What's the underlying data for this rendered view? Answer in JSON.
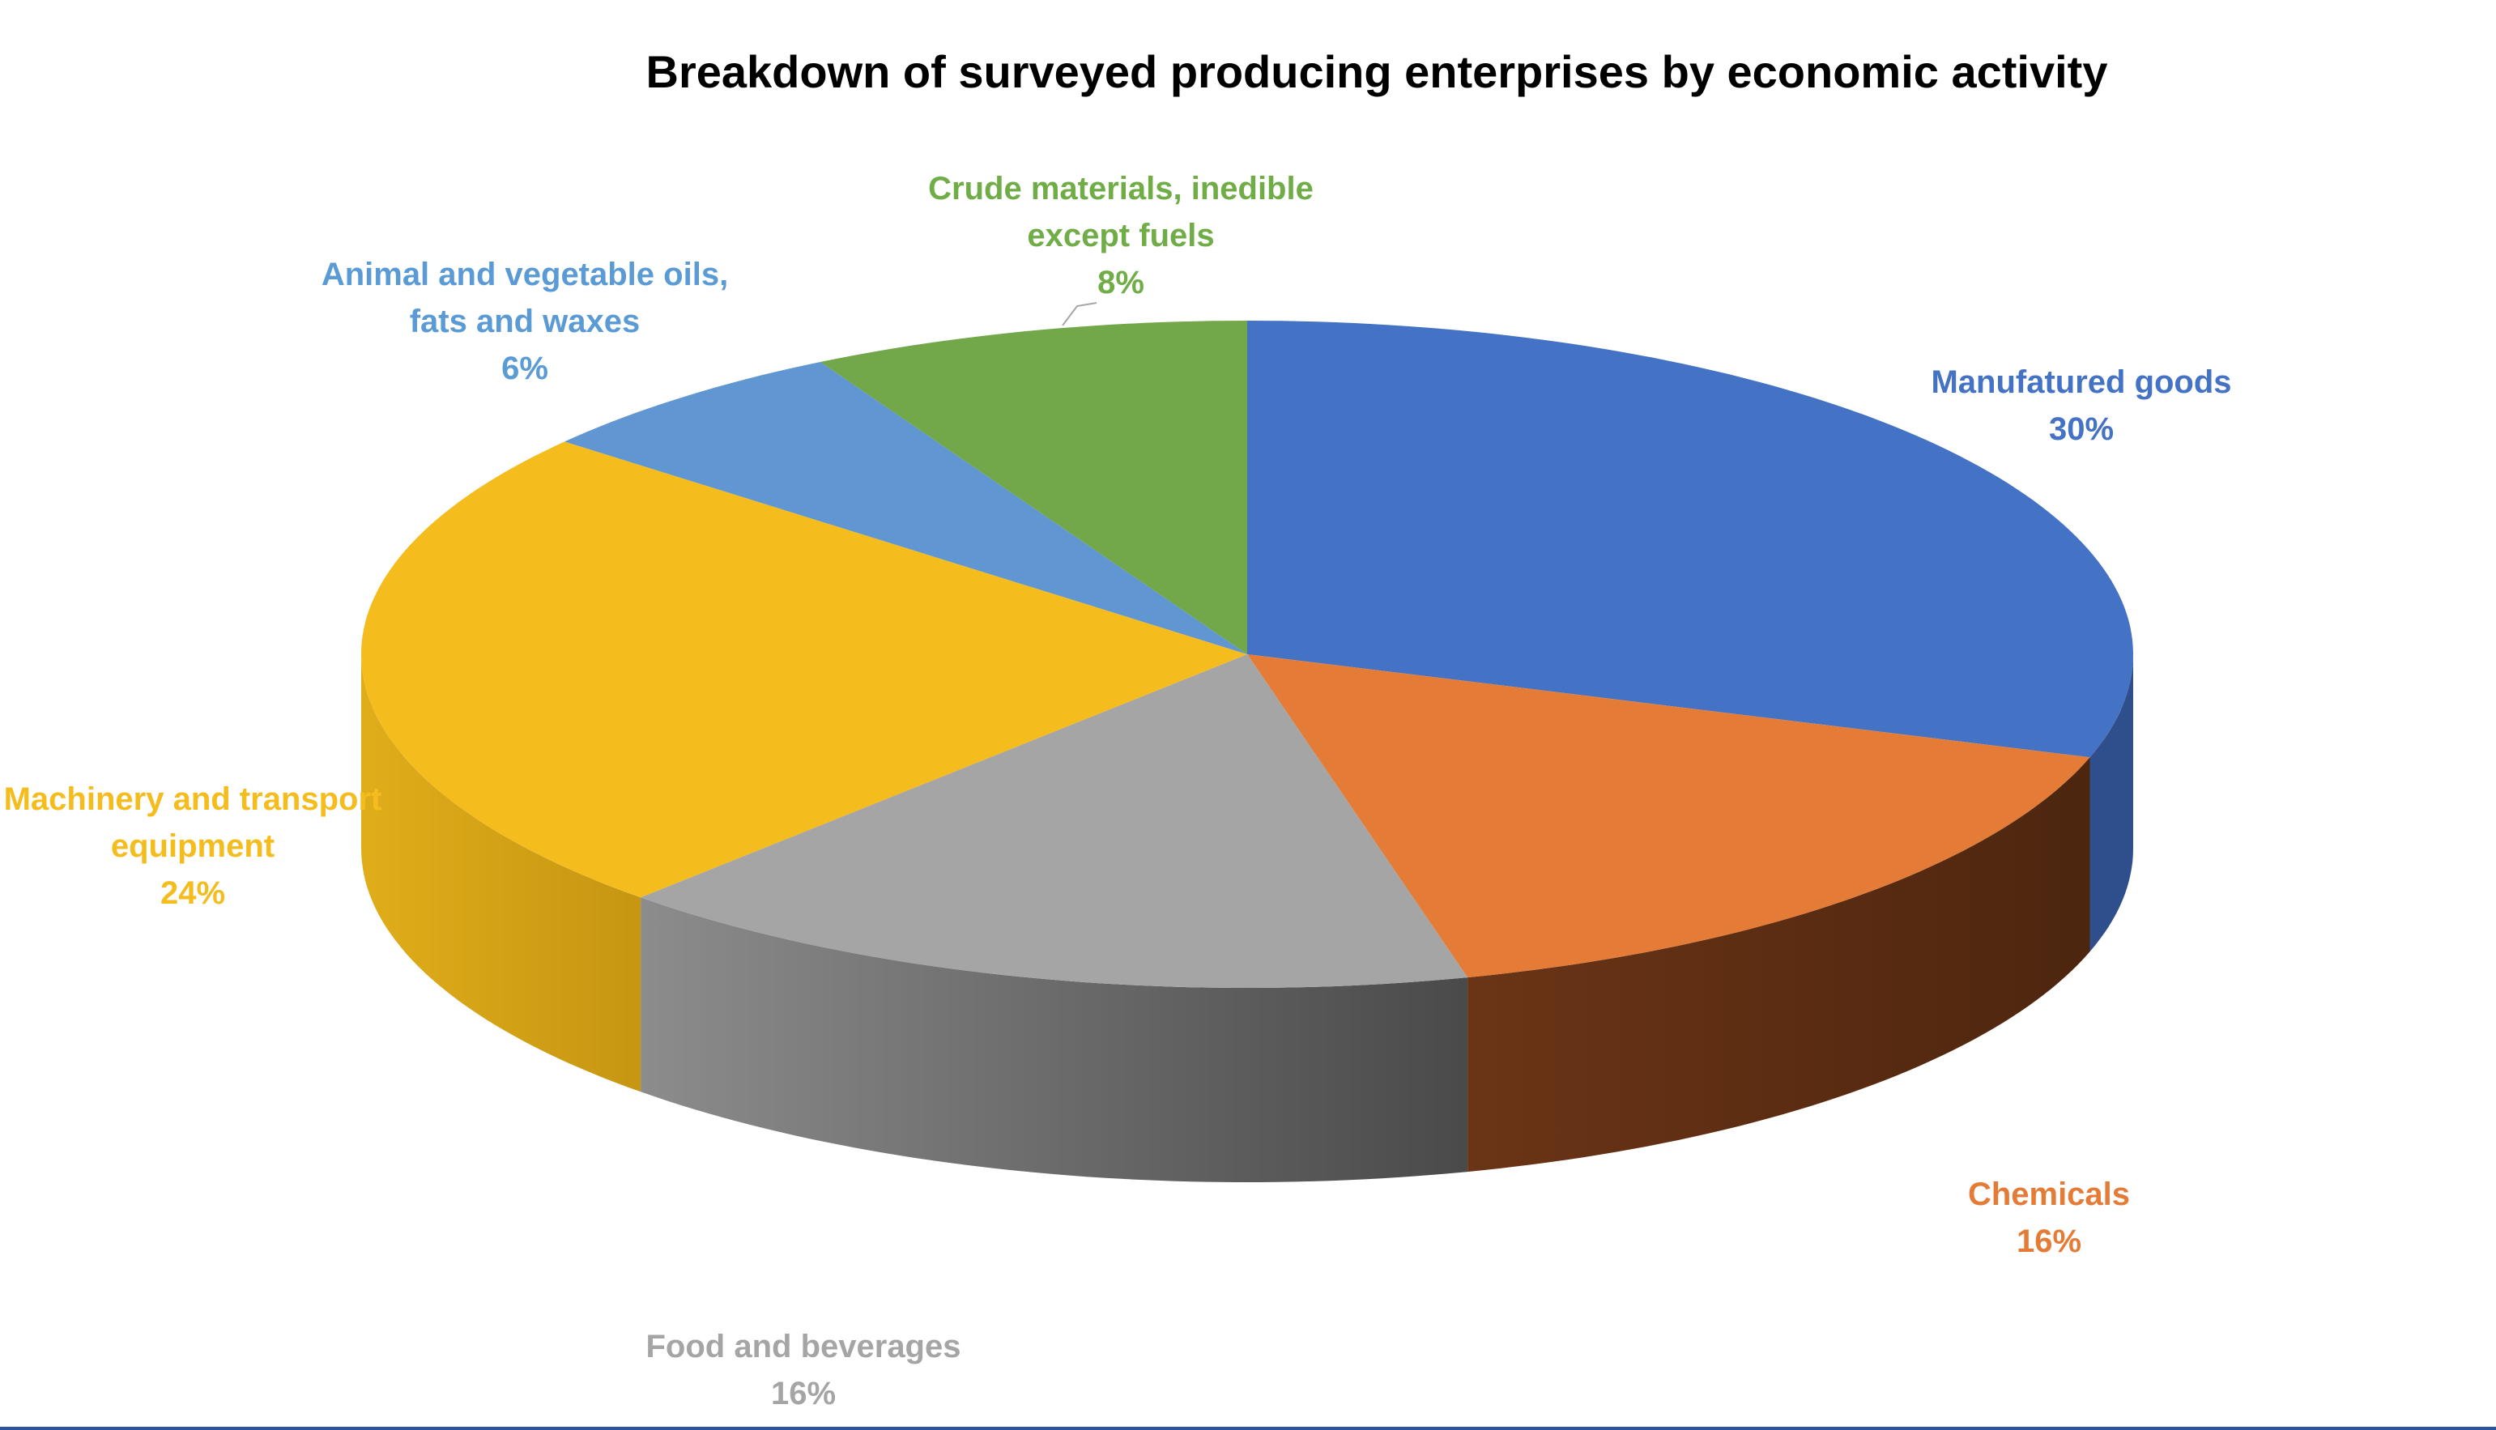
{
  "chart_data": {
    "type": "pie",
    "title": "Breakdown of surveyed producing enterprises by economic activity",
    "slices": [
      {
        "label_lines": [
          "Manufatured goods"
        ],
        "value": 30,
        "value_label": "30%",
        "color": "#4472c4",
        "side_color": "#2f4f8c",
        "text_color": "#4472c4"
      },
      {
        "label_lines": [
          "Chemicals"
        ],
        "value": 16,
        "value_label": "16%",
        "color": "#e47c37",
        "side_color": "#633015",
        "text_color": "#e47c37"
      },
      {
        "label_lines": [
          "Food and beverages"
        ],
        "value": 16,
        "value_label": "16%",
        "color": "#a5a5a5",
        "side_color": "#6b6b6b",
        "text_color": "#a5a5a5"
      },
      {
        "label_lines": [
          "Machinery and transport",
          "equipment"
        ],
        "value": 24,
        "value_label": "24%",
        "color": "#f5bc1e",
        "side_color": "#d3a016",
        "text_color": "#f5bc1e"
      },
      {
        "label_lines": [
          "Animal and vegetable oils,",
          "fats and waxes"
        ],
        "value": 6,
        "value_label": "6%",
        "color": "#6096d1",
        "side_color": "#40699a",
        "text_color": "#5b9bd5"
      },
      {
        "label_lines": [
          "Crude materials, inedible",
          "except fuels"
        ],
        "value": 8,
        "value_label": "8%",
        "color": "#72a84a",
        "side_color": "#4f7834",
        "text_color": "#70ad47"
      }
    ],
    "start": "top",
    "direction": "clockwise",
    "style": "3d",
    "legend": "none"
  }
}
